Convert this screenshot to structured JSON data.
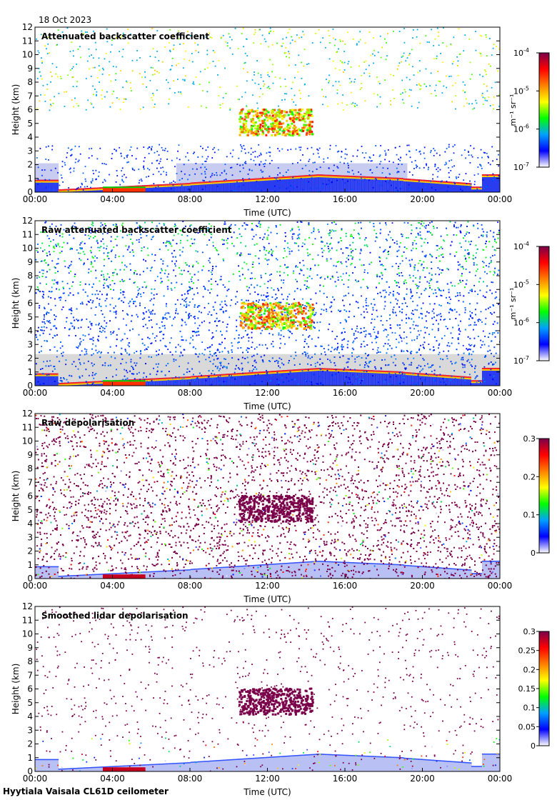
{
  "date": "18 Oct 2023",
  "footer": "Hyytiala Vaisala CL61D ceilometer",
  "colors": {
    "scale": [
      "#ffffff",
      "#0000ff",
      "#00a0ff",
      "#00ff00",
      "#ffff00",
      "#ff8000",
      "#ff0000",
      "#7a004a"
    ],
    "background_gray": "#d9d9d9",
    "depol_purple": "#7a004a"
  },
  "chart_data": [
    {
      "type": "heatmap",
      "title": "Attenuated backscatter coefficient",
      "xlabel": "Time (UTC)",
      "ylabel": "Height (km)",
      "x_ticks": [
        "00:00",
        "04:00",
        "08:00",
        "12:00",
        "16:00",
        "20:00",
        "00:00"
      ],
      "y_ticks": [
        "0",
        "1",
        "2",
        "3",
        "4",
        "5",
        "6",
        "7",
        "8",
        "9",
        "10",
        "11",
        "12"
      ],
      "xlim": [
        0,
        24
      ],
      "ylim": [
        0,
        12
      ],
      "colorbar": {
        "scale": "log",
        "range": [
          1e-07,
          0.0001
        ],
        "ticks": [
          {
            "value": -7,
            "label": "10",
            "exp": "-7"
          },
          {
            "value": -6,
            "label": "10",
            "exp": "-6"
          },
          {
            "value": -5,
            "label": "10",
            "exp": "-5"
          },
          {
            "value": -4,
            "label": "10",
            "exp": "-4"
          }
        ],
        "unit": "m⁻¹ sr⁻¹"
      },
      "style": "smoothed"
    },
    {
      "type": "heatmap",
      "title": "Raw attenuated backscatter coefficient",
      "xlabel": "Time (UTC)",
      "ylabel": "Height (km)",
      "x_ticks": [
        "00:00",
        "04:00",
        "08:00",
        "12:00",
        "16:00",
        "20:00",
        "00:00"
      ],
      "y_ticks": [
        "0",
        "1",
        "2",
        "3",
        "4",
        "5",
        "6",
        "7",
        "8",
        "9",
        "10",
        "11",
        "12"
      ],
      "xlim": [
        0,
        24
      ],
      "ylim": [
        0,
        12
      ],
      "colorbar": {
        "scale": "log",
        "range": [
          1e-07,
          0.0001
        ],
        "ticks": [
          {
            "value": -7,
            "label": "10",
            "exp": "-7"
          },
          {
            "value": -6,
            "label": "10",
            "exp": "-6"
          },
          {
            "value": -5,
            "label": "10",
            "exp": "-5"
          },
          {
            "value": -4,
            "label": "10",
            "exp": "-4"
          }
        ],
        "unit": "m⁻¹ sr⁻¹"
      },
      "style": "raw"
    },
    {
      "type": "heatmap",
      "title": "Raw depolarisation",
      "xlabel": "Time (UTC)",
      "ylabel": "Height (km)",
      "x_ticks": [
        "00:00",
        "04:00",
        "08:00",
        "12:00",
        "16:00",
        "20:00",
        "00:00"
      ],
      "y_ticks": [
        "0",
        "1",
        "2",
        "3",
        "4",
        "5",
        "6",
        "7",
        "8",
        "9",
        "10",
        "11",
        "12"
      ],
      "xlim": [
        0,
        24
      ],
      "ylim": [
        0,
        12
      ],
      "colorbar": {
        "scale": "linear",
        "range": [
          0,
          0.3
        ],
        "ticks": [
          {
            "value": 0,
            "label": "0"
          },
          {
            "value": 0.1,
            "label": "0.1"
          },
          {
            "value": 0.2,
            "label": "0.2"
          },
          {
            "value": 0.3,
            "label": "0.3"
          }
        ],
        "unit": ""
      },
      "style": "depol_raw"
    },
    {
      "type": "heatmap",
      "title": "Smoothed lidar depolarisation",
      "xlabel": "Time (UTC)",
      "ylabel": "Height (km)",
      "x_ticks": [
        "00:00",
        "04:00",
        "08:00",
        "12:00",
        "16:00",
        "20:00",
        "00:00"
      ],
      "y_ticks": [
        "0",
        "1",
        "2",
        "3",
        "4",
        "5",
        "6",
        "7",
        "8",
        "9",
        "10",
        "11",
        "12"
      ],
      "xlim": [
        0,
        24
      ],
      "ylim": [
        0,
        12
      ],
      "colorbar": {
        "scale": "linear",
        "range": [
          0,
          0.3
        ],
        "ticks": [
          {
            "value": 0,
            "label": "0"
          },
          {
            "value": 0.05,
            "label": "0.05"
          },
          {
            "value": 0.1,
            "label": "0.1"
          },
          {
            "value": 0.15,
            "label": "0.15"
          },
          {
            "value": 0.2,
            "label": "0.2"
          },
          {
            "value": 0.25,
            "label": "0.25"
          },
          {
            "value": 0.3,
            "label": "0.3"
          }
        ],
        "unit": ""
      },
      "style": "depol_smooth"
    }
  ]
}
